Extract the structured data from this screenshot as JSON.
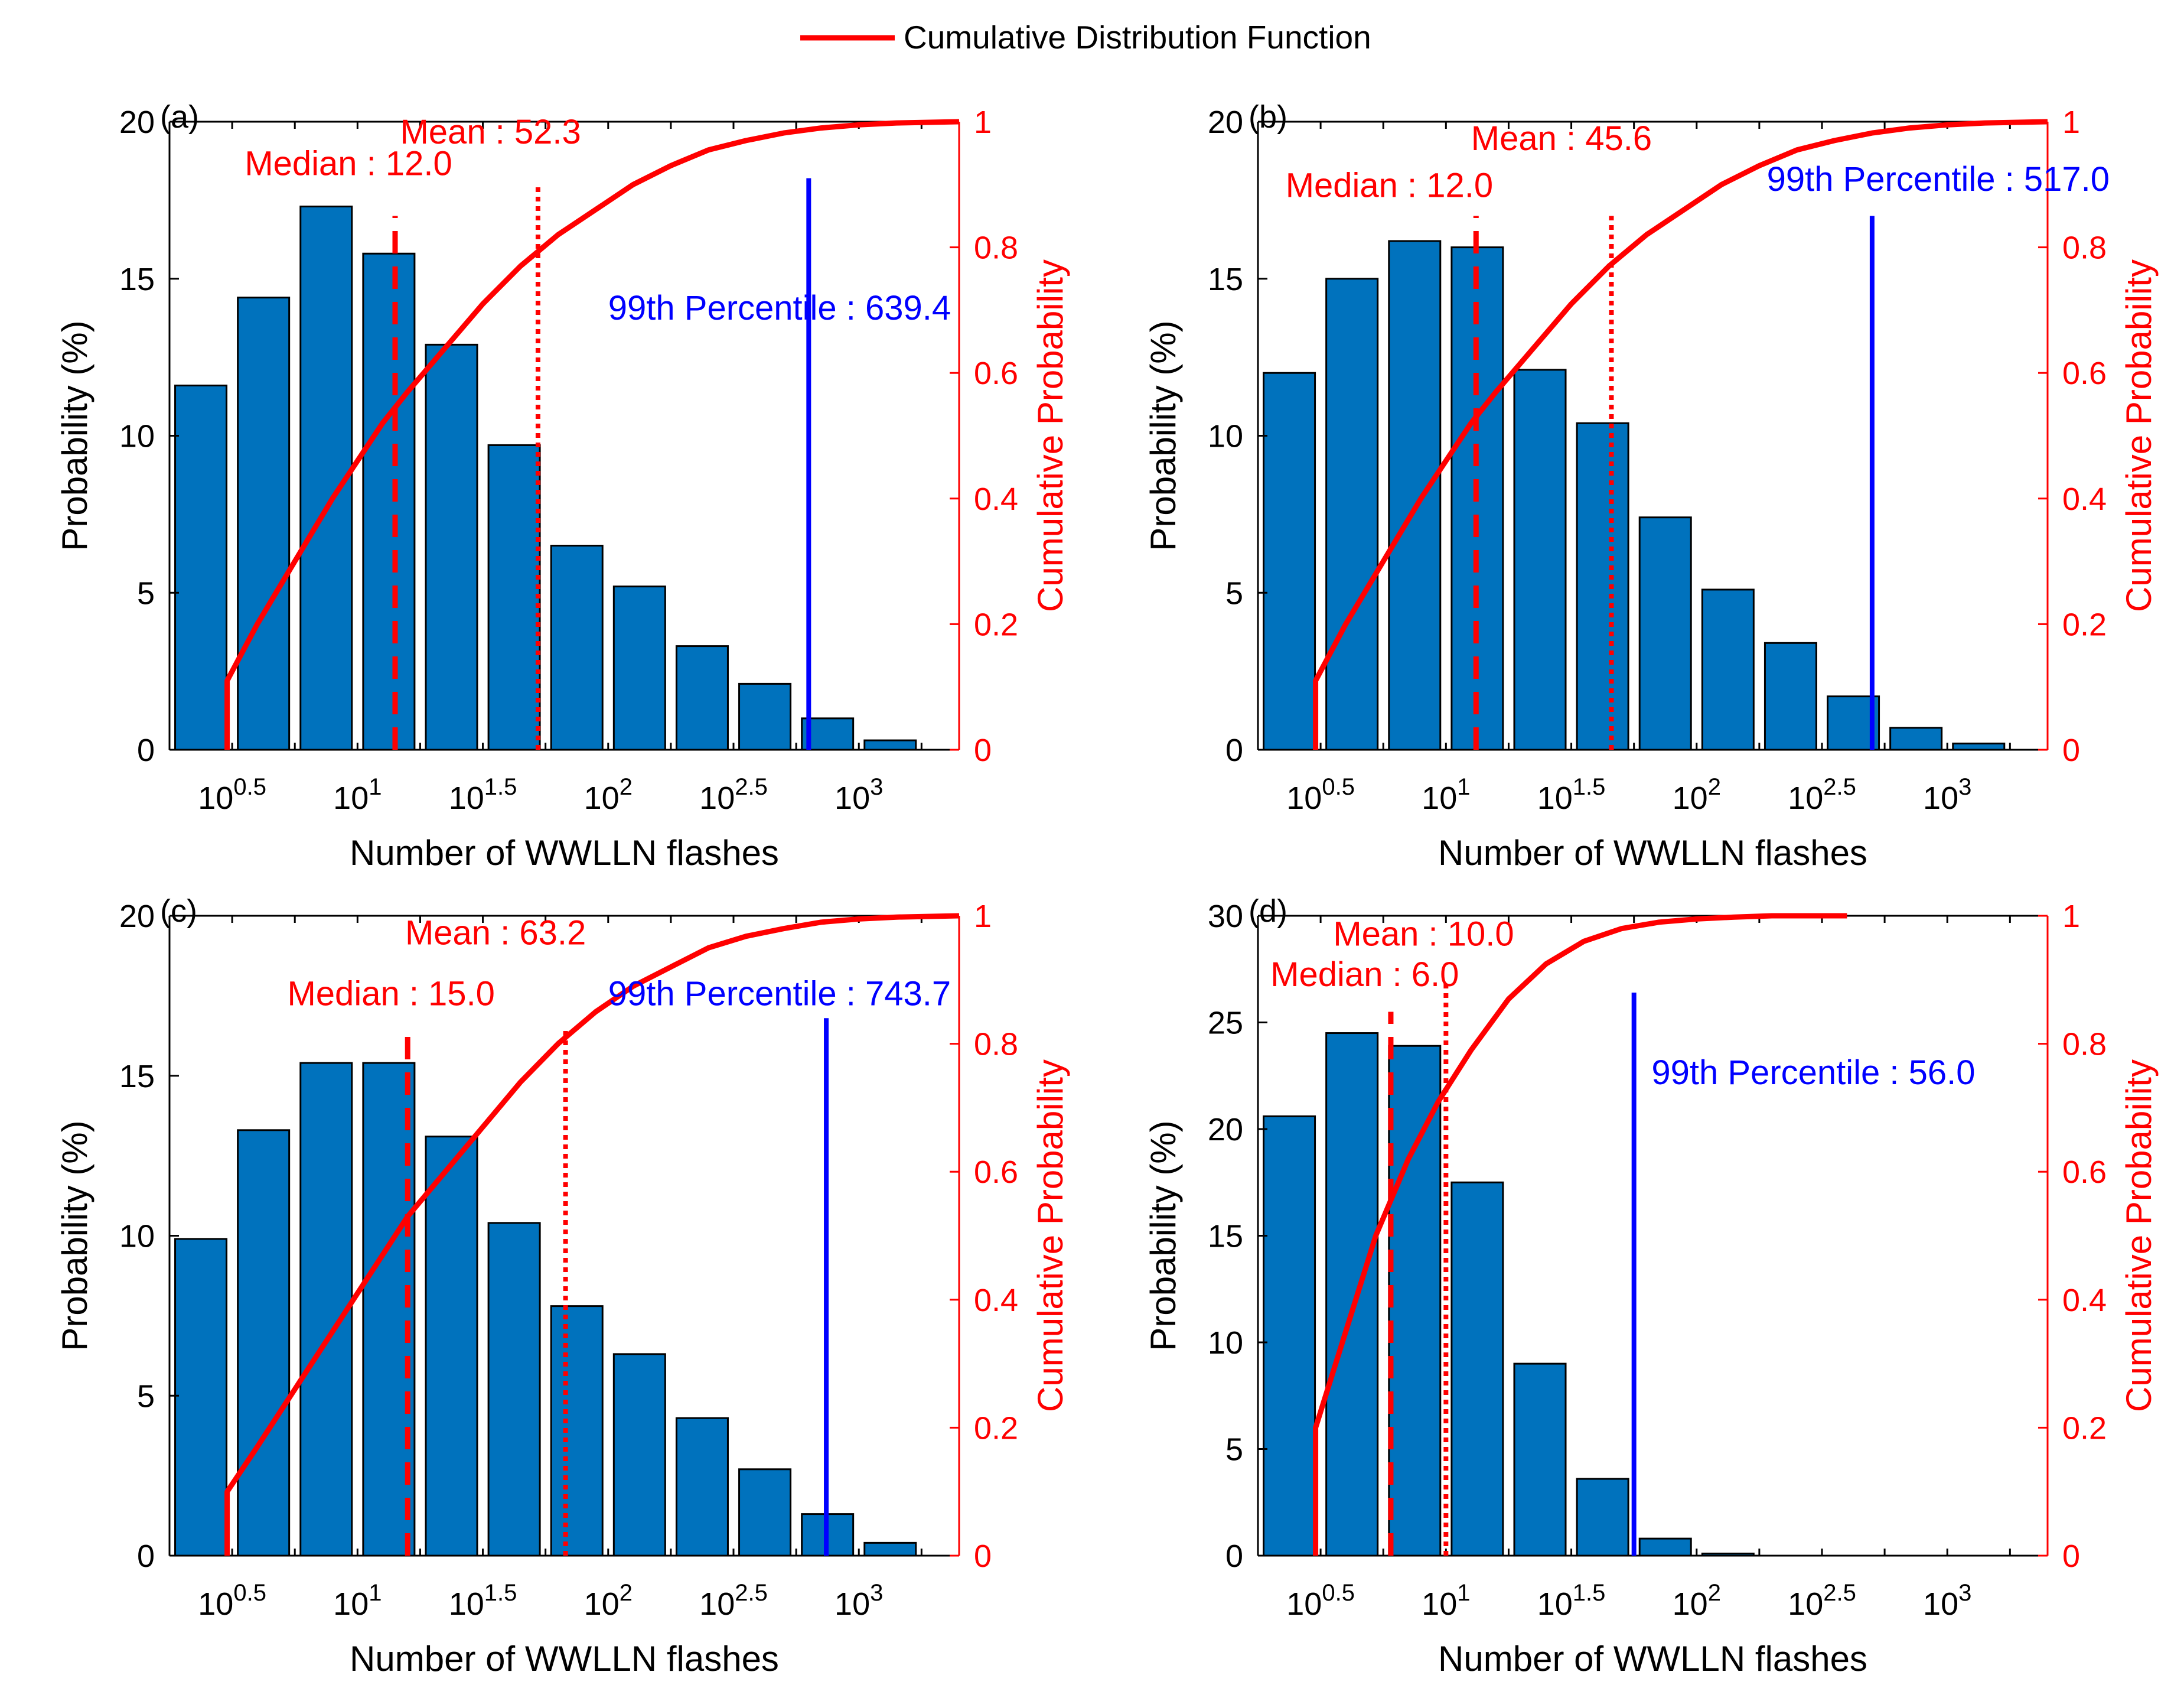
{
  "legend": {
    "label": "Cumulative Distribution Function",
    "color": "#ff0000",
    "placement": "top-center"
  },
  "colors": {
    "bar": "#0072BD",
    "cdf": "#ff0000",
    "percentile": "#0000ff",
    "axis": "#000000"
  },
  "chart_data": [
    {
      "panel": "(a)",
      "type": "bar",
      "xlabel": "Number of WWLLN flashes",
      "ylabel": "Probability (%)",
      "y2label": "Cumulative Probability",
      "xscale": "log10",
      "xlim_log10": [
        0.25,
        3.4
      ],
      "ylim": [
        0,
        20
      ],
      "yticks": [
        0,
        5,
        10,
        15,
        20
      ],
      "y2lim": [
        0,
        1
      ],
      "y2ticks": [
        0,
        0.2,
        0.4,
        0.6,
        0.8,
        1
      ],
      "xticks": [
        {
          "base": "10",
          "exp": "0.5",
          "value": 0.5
        },
        {
          "base": "10",
          "exp": "1",
          "value": 1
        },
        {
          "base": "10",
          "exp": "1.5",
          "value": 1.5
        },
        {
          "base": "10",
          "exp": "2",
          "value": 2
        },
        {
          "base": "10",
          "exp": "2.5",
          "value": 2.5
        },
        {
          "base": "10",
          "exp": "3",
          "value": 3
        }
      ],
      "bar_centers_log10": [
        0.375,
        0.625,
        0.875,
        1.125,
        1.375,
        1.625,
        1.875,
        2.125,
        2.375,
        2.625,
        2.875,
        3.125
      ],
      "values": [
        11.6,
        14.4,
        17.3,
        15.8,
        12.9,
        9.7,
        6.5,
        5.2,
        3.3,
        2.1,
        1.0,
        0.3
      ],
      "cdf": {
        "x_log10": [
          0.48,
          0.48,
          0.6,
          0.75,
          0.9,
          1.0,
          1.1,
          1.2,
          1.35,
          1.5,
          1.65,
          1.8,
          1.95,
          2.1,
          2.25,
          2.4,
          2.55,
          2.7,
          2.85,
          3.0,
          3.15,
          3.4
        ],
        "y": [
          0.0,
          0.11,
          0.2,
          0.3,
          0.4,
          0.46,
          0.52,
          0.57,
          0.64,
          0.71,
          0.77,
          0.82,
          0.86,
          0.9,
          0.93,
          0.955,
          0.97,
          0.982,
          0.99,
          0.995,
          0.998,
          1.0
        ]
      },
      "median": {
        "label": "Median : 12.0",
        "value_log10": 1.15,
        "line_top": 17,
        "label_pos": [
          0.55,
          18.3
        ]
      },
      "mean": {
        "label": "Mean : 52.3",
        "value_log10": 1.72,
        "line_top": 18,
        "label_pos": [
          1.17,
          19.3
        ]
      },
      "percentile99": {
        "label": "99th Percentile : 639.4",
        "value_log10": 2.8,
        "line_top": 18.2,
        "label_pos": [
          2.0,
          13.7
        ]
      }
    },
    {
      "panel": "(b)",
      "type": "bar",
      "xlabel": "Number of WWLLN flashes",
      "ylabel": "Probability (%)",
      "y2label": "Cumulative Probability",
      "xscale": "log10",
      "xlim_log10": [
        0.25,
        3.4
      ],
      "ylim": [
        0,
        20
      ],
      "yticks": [
        0,
        5,
        10,
        15,
        20
      ],
      "y2lim": [
        0,
        1
      ],
      "y2ticks": [
        0,
        0.2,
        0.4,
        0.6,
        0.8,
        1
      ],
      "xticks": [
        {
          "base": "10",
          "exp": "0.5",
          "value": 0.5
        },
        {
          "base": "10",
          "exp": "1",
          "value": 1
        },
        {
          "base": "10",
          "exp": "1.5",
          "value": 1.5
        },
        {
          "base": "10",
          "exp": "2",
          "value": 2
        },
        {
          "base": "10",
          "exp": "2.5",
          "value": 2.5
        },
        {
          "base": "10",
          "exp": "3",
          "value": 3
        }
      ],
      "bar_centers_log10": [
        0.375,
        0.625,
        0.875,
        1.125,
        1.375,
        1.625,
        1.875,
        2.125,
        2.375,
        2.625,
        2.875,
        3.125
      ],
      "values": [
        12.0,
        15.0,
        16.2,
        16.0,
        12.1,
        10.4,
        7.4,
        5.1,
        3.4,
        1.7,
        0.7,
        0.2
      ],
      "cdf": {
        "x_log10": [
          0.48,
          0.48,
          0.6,
          0.75,
          0.9,
          1.0,
          1.1,
          1.2,
          1.35,
          1.5,
          1.65,
          1.8,
          1.95,
          2.1,
          2.25,
          2.4,
          2.55,
          2.7,
          2.85,
          3.0,
          3.15,
          3.4
        ],
        "y": [
          0.0,
          0.11,
          0.2,
          0.3,
          0.4,
          0.46,
          0.52,
          0.57,
          0.64,
          0.71,
          0.77,
          0.82,
          0.86,
          0.9,
          0.93,
          0.955,
          0.97,
          0.982,
          0.99,
          0.995,
          0.998,
          1.0
        ]
      },
      "median": {
        "label": "Median : 12.0",
        "value_log10": 1.12,
        "line_top": 17,
        "label_pos": [
          0.36,
          17.6
        ]
      },
      "mean": {
        "label": "Mean : 45.6",
        "value_log10": 1.66,
        "line_top": 17,
        "label_pos": [
          1.1,
          19.1
        ]
      },
      "percentile99": {
        "label": "99th Percentile : 517.0",
        "value_log10": 2.7,
        "line_top": 17,
        "label_pos": [
          2.28,
          17.8
        ]
      }
    },
    {
      "panel": "(c)",
      "type": "bar",
      "xlabel": "Number of WWLLN flashes",
      "ylabel": "Probability (%)",
      "y2label": "Cumulative Probability",
      "xscale": "log10",
      "xlim_log10": [
        0.25,
        3.4
      ],
      "ylim": [
        0,
        20
      ],
      "yticks": [
        0,
        5,
        10,
        15,
        20
      ],
      "y2lim": [
        0,
        1
      ],
      "y2ticks": [
        0,
        0.2,
        0.4,
        0.6,
        0.8,
        1
      ],
      "xticks": [
        {
          "base": "10",
          "exp": "0.5",
          "value": 0.5
        },
        {
          "base": "10",
          "exp": "1",
          "value": 1
        },
        {
          "base": "10",
          "exp": "1.5",
          "value": 1.5
        },
        {
          "base": "10",
          "exp": "2",
          "value": 2
        },
        {
          "base": "10",
          "exp": "2.5",
          "value": 2.5
        },
        {
          "base": "10",
          "exp": "3",
          "value": 3
        }
      ],
      "bar_centers_log10": [
        0.375,
        0.625,
        0.875,
        1.125,
        1.375,
        1.625,
        1.875,
        2.125,
        2.375,
        2.625,
        2.875,
        3.125
      ],
      "values": [
        9.9,
        13.3,
        15.4,
        15.4,
        13.1,
        10.4,
        7.8,
        6.3,
        4.3,
        2.7,
        1.3,
        0.4
      ],
      "cdf": {
        "x_log10": [
          0.48,
          0.48,
          0.6,
          0.75,
          0.9,
          1.0,
          1.1,
          1.2,
          1.35,
          1.5,
          1.65,
          1.8,
          1.95,
          2.1,
          2.25,
          2.4,
          2.55,
          2.7,
          2.85,
          3.0,
          3.15,
          3.4
        ],
        "y": [
          0.0,
          0.1,
          0.17,
          0.26,
          0.35,
          0.41,
          0.47,
          0.53,
          0.6,
          0.67,
          0.74,
          0.8,
          0.85,
          0.89,
          0.92,
          0.95,
          0.968,
          0.98,
          0.99,
          0.995,
          0.998,
          1.0
        ]
      },
      "median": {
        "label": "Median : 15.0",
        "value_log10": 1.2,
        "line_top": 16.5,
        "label_pos": [
          0.72,
          17.2
        ]
      },
      "mean": {
        "label": "Mean : 63.2",
        "value_log10": 1.83,
        "line_top": 16.5,
        "label_pos": [
          1.19,
          19.1
        ]
      },
      "percentile99": {
        "label": "99th Percentile : 743.7",
        "value_log10": 2.87,
        "line_top": 16.8,
        "label_pos": [
          2.0,
          17.2
        ]
      }
    },
    {
      "panel": "(d)",
      "type": "bar",
      "xlabel": "Number of WWLLN flashes",
      "ylabel": "Probability (%)",
      "y2label": "Cumulative Probability",
      "xscale": "log10",
      "xlim_log10": [
        0.25,
        3.4
      ],
      "ylim": [
        0,
        30
      ],
      "yticks": [
        0,
        5,
        10,
        15,
        20,
        25,
        30
      ],
      "y2lim": [
        0,
        1
      ],
      "y2ticks": [
        0,
        0.2,
        0.4,
        0.6,
        0.8,
        1
      ],
      "xticks": [
        {
          "base": "10",
          "exp": "0.5",
          "value": 0.5
        },
        {
          "base": "10",
          "exp": "1",
          "value": 1
        },
        {
          "base": "10",
          "exp": "1.5",
          "value": 1.5
        },
        {
          "base": "10",
          "exp": "2",
          "value": 2
        },
        {
          "base": "10",
          "exp": "2.5",
          "value": 2.5
        },
        {
          "base": "10",
          "exp": "3",
          "value": 3
        }
      ],
      "bar_centers_log10": [
        0.375,
        0.625,
        0.875,
        1.125,
        1.375,
        1.625,
        1.875,
        2.125,
        2.375,
        2.625,
        2.875,
        3.125
      ],
      "values": [
        20.6,
        24.5,
        23.9,
        17.5,
        9.0,
        3.6,
        0.8,
        0.1,
        0,
        0,
        0,
        0
      ],
      "cdf": {
        "x_log10": [
          0.48,
          0.48,
          0.6,
          0.72,
          0.85,
          0.97,
          1.1,
          1.25,
          1.4,
          1.55,
          1.7,
          1.85,
          2.0,
          2.15,
          2.3,
          2.6
        ],
        "y": [
          0.0,
          0.2,
          0.35,
          0.5,
          0.62,
          0.71,
          0.79,
          0.87,
          0.925,
          0.96,
          0.98,
          0.99,
          0.995,
          0.998,
          1.0,
          1.0
        ]
      },
      "median": {
        "label": "Median : 6.0",
        "value_log10": 0.78,
        "line_top": 25.5,
        "label_pos": [
          0.3,
          26.7
        ]
      },
      "mean": {
        "label": "Mean : 10.0",
        "value_log10": 1.0,
        "line_top": 27,
        "label_pos": [
          0.55,
          28.6
        ]
      },
      "percentile99": {
        "label": "99th Percentile : 56.0",
        "value_log10": 1.75,
        "line_top": 26.4,
        "label_pos": [
          1.82,
          22.1
        ]
      }
    }
  ]
}
